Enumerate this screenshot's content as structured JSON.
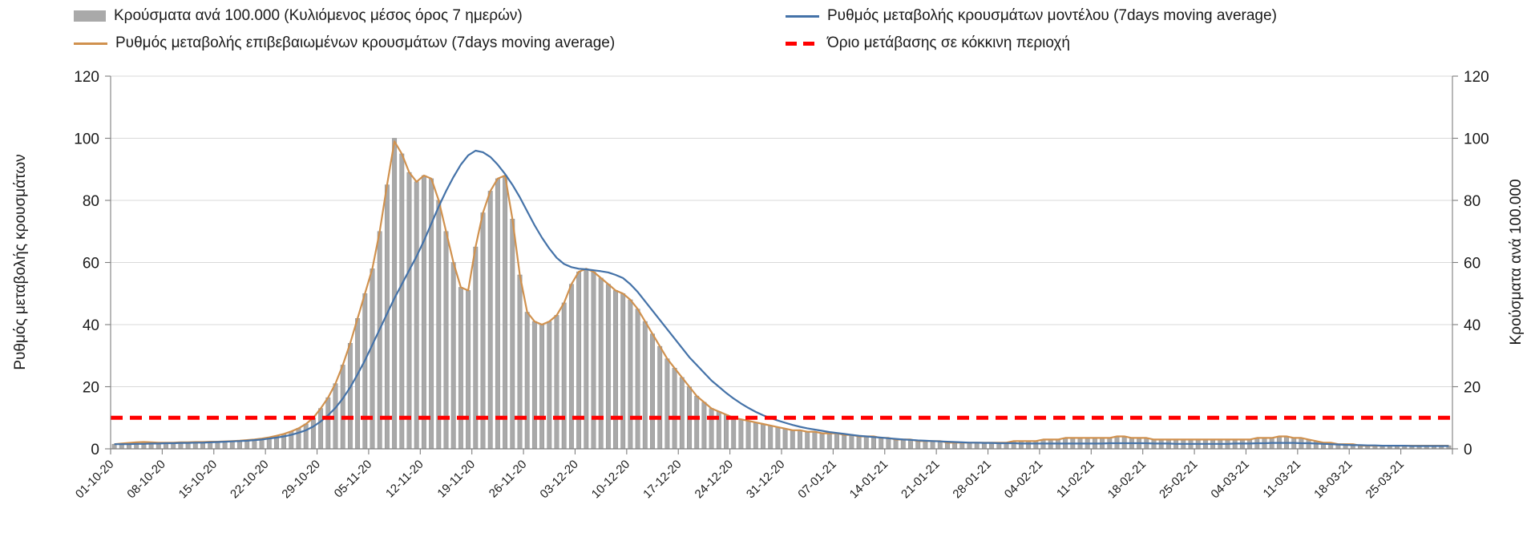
{
  "legend": {
    "bars": "Κρούσματα ανά 100.000 (Κυλιόμενος μέσος όρος 7 ημερών)",
    "model": "Ρυθμός μεταβολής κρουσμάτων μοντέλου (7days moving average)",
    "confirmed": "Ρυθμός μεταβολής επιβεβαιωμένων κρουσμάτων (7days moving average)",
    "threshold": "Όριο μετάβασης σε κόκκινη περιοχή"
  },
  "axes": {
    "left_title": "Ρυθμός μεταβολής κρουσμάτων",
    "right_title": "Κρούσματα ανά 100.000",
    "y_ticks": [
      0,
      20,
      40,
      60,
      80,
      100,
      120
    ],
    "y_max": 120
  },
  "colors": {
    "bar": "#a9a9a9",
    "bar_stroke": "#8f8f8f",
    "model": "#4472a8",
    "confirmed": "#d0914e",
    "threshold": "#ff0000",
    "grid": "#d9d9d9",
    "axis": "#7f7f7f",
    "text": "#1a1a1a"
  },
  "chart_data": {
    "type": "bar",
    "title": "",
    "legend_position": "top",
    "ylim": [
      0,
      120
    ],
    "grid": "horizontal",
    "tick_interval_days": 7,
    "x_tick_labels": [
      "01-10-20",
      "08-10-20",
      "15-10-20",
      "22-10-20",
      "29-10-20",
      "05-11-20",
      "12-11-20",
      "19-11-20",
      "26-11-20",
      "03-12-20",
      "10-12-20",
      "17-12-20",
      "24-12-20",
      "31-12-20",
      "07-01-21",
      "14-01-21",
      "21-01-21",
      "28-01-21",
      "04-02-21",
      "11-02-21",
      "18-02-21",
      "25-02-21",
      "04-03-21",
      "11-03-21",
      "18-03-21",
      "25-03-21"
    ],
    "series": [
      {
        "name": "Κρούσματα ανά 100.000 (Κυλιόμενος μέσος όρος 7 ημερών)",
        "type": "bar",
        "values": [
          1.5,
          1.7,
          1.9,
          2.1,
          2.2,
          2.1,
          2.0,
          2.0,
          2.0,
          2.1,
          2.1,
          2.2,
          2.2,
          2.3,
          2.3,
          2.4,
          2.5,
          2.6,
          2.8,
          3.0,
          3.3,
          3.7,
          4.2,
          4.8,
          5.6,
          6.6,
          8.0,
          10.0,
          13,
          16.5,
          21,
          27,
          34,
          42,
          50,
          58,
          70,
          85,
          100,
          95,
          89,
          86,
          88,
          87,
          80,
          70,
          60,
          52,
          51,
          65,
          76,
          83,
          87,
          88,
          74,
          56,
          44,
          41,
          40,
          41,
          43,
          47,
          53,
          57,
          58,
          57,
          55,
          53,
          51,
          50,
          48,
          45,
          41,
          37,
          33,
          29,
          26,
          23,
          20,
          17,
          15,
          13,
          12,
          11,
          10,
          9.5,
          9,
          8.5,
          8,
          7.5,
          7,
          6.5,
          6,
          6,
          5.5,
          5.5,
          5,
          5,
          5,
          4.5,
          4.5,
          4,
          4,
          4,
          3.5,
          3.5,
          3,
          3,
          3,
          2.5,
          2.5,
          2.5,
          2.5,
          2,
          2,
          2,
          2,
          2,
          2,
          2,
          2,
          2,
          2.5,
          2.5,
          2.5,
          2.5,
          3,
          3,
          3,
          3.5,
          3.5,
          3.5,
          3.5,
          3.5,
          3.5,
          3.5,
          4,
          4,
          3.5,
          3.5,
          3.5,
          3,
          3,
          3,
          3,
          3,
          3,
          3,
          3,
          3,
          3,
          3,
          3,
          3,
          3,
          3.5,
          3.5,
          3.5,
          4,
          4,
          3.5,
          3.5,
          3,
          2.5,
          2,
          2,
          1.5,
          1.5,
          1.5,
          1,
          1,
          1,
          1,
          1,
          1,
          1,
          1,
          1,
          1,
          1,
          1,
          1
        ]
      },
      {
        "name": "Ρυθμός μεταβολής κρουσμάτων μοντέλου (7days moving average)",
        "type": "line",
        "values": [
          1.5,
          1.5,
          1.5,
          1.6,
          1.6,
          1.7,
          1.7,
          1.8,
          1.8,
          1.9,
          1.9,
          2.0,
          2.0,
          2.1,
          2.2,
          2.3,
          2.4,
          2.5,
          2.6,
          2.8,
          3.0,
          3.3,
          3.6,
          4.0,
          4.5,
          5.2,
          6.0,
          7.2,
          8.8,
          10.8,
          13.2,
          16.2,
          19.8,
          24.0,
          28.5,
          33.5,
          38.5,
          43.5,
          48.5,
          53.0,
          57.5,
          62.0,
          67.0,
          72.5,
          78.0,
          83.0,
          87.5,
          91.5,
          94.5,
          96.0,
          95.5,
          94.0,
          91.5,
          88.5,
          85.0,
          81.0,
          76.5,
          72.0,
          68.0,
          64.5,
          61.5,
          59.5,
          58.5,
          58.0,
          57.8,
          57.5,
          57.2,
          56.8,
          56.0,
          55.0,
          53.0,
          50.5,
          47.5,
          44.5,
          41.5,
          38.5,
          35.5,
          32.5,
          29.5,
          27.0,
          24.5,
          22.0,
          20.0,
          18.0,
          16.2,
          14.6,
          13.2,
          11.9,
          10.8,
          9.9,
          9.1,
          8.4,
          7.7,
          7.1,
          6.6,
          6.2,
          5.8,
          5.4,
          5.1,
          4.8,
          4.5,
          4.2,
          4.0,
          3.8,
          3.6,
          3.4,
          3.2,
          3.0,
          2.9,
          2.7,
          2.6,
          2.5,
          2.4,
          2.3,
          2.2,
          2.1,
          2.0,
          2.0,
          1.9,
          1.9,
          1.8,
          1.8,
          1.8,
          1.7,
          1.7,
          1.7,
          1.7,
          1.7,
          1.7,
          1.7,
          1.7,
          1.7,
          1.7,
          1.7,
          1.7,
          1.8,
          1.8,
          1.8,
          1.8,
          1.8,
          1.8,
          1.7,
          1.7,
          1.7,
          1.6,
          1.6,
          1.6,
          1.6,
          1.6,
          1.6,
          1.6,
          1.6,
          1.7,
          1.7,
          1.7,
          1.8,
          1.8,
          1.9,
          1.9,
          1.9,
          1.9,
          1.8,
          1.8,
          1.7,
          1.6,
          1.5,
          1.4,
          1.3,
          1.2,
          1.2,
          1.1,
          1.1,
          1.0,
          1.0,
          1.0,
          1.0,
          0.9,
          0.9,
          0.9,
          0.9,
          0.9,
          0.9
        ]
      },
      {
        "name": "Ρυθμός μεταβολής επιβεβαιωμένων κρουσμάτων (7days moving average)",
        "type": "line",
        "values": [
          1.5,
          1.7,
          1.9,
          2.1,
          2.2,
          2.1,
          2.0,
          2.0,
          2.0,
          2.1,
          2.1,
          2.2,
          2.2,
          2.3,
          2.3,
          2.4,
          2.5,
          2.6,
          2.8,
          3.0,
          3.3,
          3.7,
          4.2,
          4.8,
          5.6,
          6.6,
          8.0,
          10.0,
          13,
          16.5,
          21,
          27,
          34,
          42,
          50,
          58,
          70,
          85,
          99,
          95,
          89,
          86,
          88,
          87,
          80,
          70,
          60,
          52,
          51,
          65,
          76,
          83,
          87,
          88,
          74,
          56,
          44,
          41,
          40,
          41,
          43,
          47,
          53,
          57,
          58,
          57,
          55,
          53,
          51,
          50,
          48,
          45,
          41,
          37,
          33,
          29,
          26,
          23,
          20,
          17,
          15,
          13,
          12,
          11,
          10,
          9.5,
          9,
          8.5,
          8,
          7.5,
          7,
          6.5,
          6,
          6,
          5.5,
          5.5,
          5,
          5,
          5,
          4.5,
          4.5,
          4,
          4,
          4,
          3.5,
          3.5,
          3,
          3,
          3,
          2.5,
          2.5,
          2.5,
          2.5,
          2,
          2,
          2,
          2,
          2,
          2,
          2,
          2,
          2,
          2.5,
          2.5,
          2.5,
          2.5,
          3,
          3,
          3,
          3.5,
          3.5,
          3.5,
          3.5,
          3.5,
          3.5,
          3.5,
          4,
          4,
          3.5,
          3.5,
          3.5,
          3,
          3,
          3,
          3,
          3,
          3,
          3,
          3,
          3,
          3,
          3,
          3,
          3,
          3,
          3.5,
          3.5,
          3.5,
          4,
          4,
          3.5,
          3.5,
          3,
          2.5,
          2,
          2,
          1.5,
          1.5,
          1.5,
          1,
          1,
          1,
          1,
          1,
          1,
          1,
          1,
          1,
          1,
          1,
          1,
          1
        ]
      }
    ],
    "threshold": {
      "name": "Όριο μετάβασης σε κόκκινη περιοχή",
      "type": "threshold-line",
      "style": "dashed",
      "value": 10
    }
  }
}
